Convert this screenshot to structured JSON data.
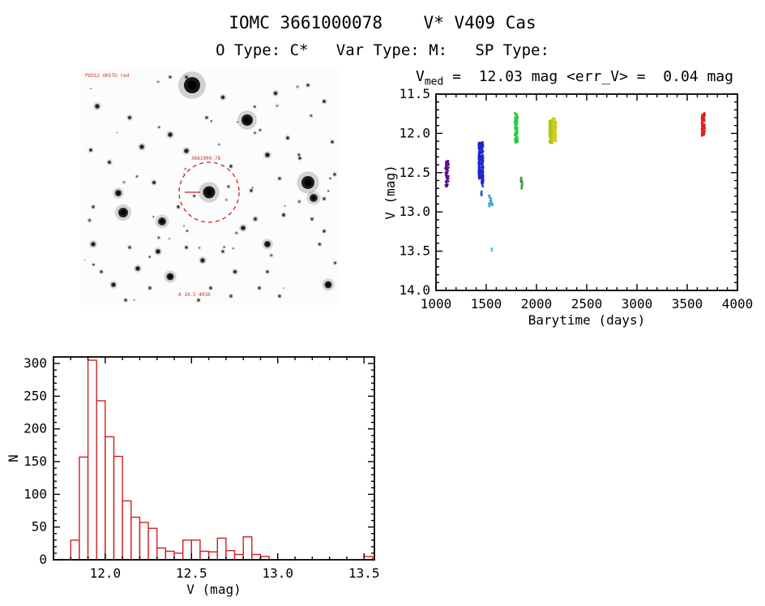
{
  "header": {
    "title": "IOMC 3661000078    V* V409 Cas",
    "subtitle": "O Type: C*   Var Type: M:   SP Type:"
  },
  "lightcurve_title": {
    "var": "V",
    "sub": "med",
    "eq": " =  12.03 mag ",
    "err": "<err_V>",
    "eq2": " =  0.04 mag"
  },
  "finding_chart": {
    "annotations": {
      "top_left": "POSS2 UKSTU red",
      "center_label": "3661000-78",
      "bottom": "A 19.5 4036"
    },
    "marker_color": "#cc2222"
  },
  "chart_data": [
    {
      "id": "lightcurve",
      "type": "scatter",
      "xlabel": "Barytime (days)",
      "ylabel": "V (mag)",
      "xlim": [
        1000,
        4000
      ],
      "ylim": [
        11.5,
        14.0
      ],
      "y_inverted": true,
      "xticks": [
        1000,
        1500,
        2000,
        2500,
        3000,
        3500,
        4000
      ],
      "yticks": [
        11.5,
        12.0,
        12.5,
        13.0,
        13.5,
        14.0
      ],
      "clusters": [
        {
          "color": "#5a0f86",
          "t": [
            1095,
            1125
          ],
          "v": [
            12.35,
            12.68
          ],
          "n": 50
        },
        {
          "color": "#1f25c8",
          "t": [
            1425,
            1442
          ],
          "v": [
            12.12,
            12.58
          ],
          "n": 110
        },
        {
          "color": "#1f25c8",
          "t": [
            1455,
            1470
          ],
          "v": [
            12.1,
            12.65
          ],
          "n": 110
        },
        {
          "color": "#2a52d8",
          "t": [
            1450,
            1468
          ],
          "v": [
            12.65,
            12.8
          ],
          "n": 7
        },
        {
          "color": "#2e9fd4",
          "t": [
            1525,
            1565
          ],
          "v": [
            12.74,
            12.93
          ],
          "n": 13
        },
        {
          "color": "#3fc3e8",
          "t": [
            1552,
            1562
          ],
          "v": [
            13.45,
            13.5
          ],
          "n": 2
        },
        {
          "color": "#27cc45",
          "t": [
            1785,
            1812
          ],
          "v": [
            11.73,
            12.12
          ],
          "n": 110
        },
        {
          "color": "#2f9e44",
          "t": [
            1843,
            1860
          ],
          "v": [
            12.56,
            12.7
          ],
          "n": 12
        },
        {
          "color": "#a8c81e",
          "t": [
            2128,
            2158
          ],
          "v": [
            11.83,
            12.13
          ],
          "n": 85
        },
        {
          "color": "#d3cb1d",
          "t": [
            2163,
            2195
          ],
          "v": [
            11.8,
            12.1
          ],
          "n": 85
        },
        {
          "color": "#dd2222",
          "t": [
            3642,
            3675
          ],
          "v": [
            11.74,
            12.03
          ],
          "n": 65
        }
      ]
    },
    {
      "id": "histogram",
      "type": "bar",
      "xlabel": "V (mag)",
      "ylabel": "N",
      "xlim": [
        11.7,
        13.56
      ],
      "ylim": [
        0,
        310
      ],
      "xticks": [
        12.0,
        12.5,
        13.0,
        13.5
      ],
      "yticks": [
        0,
        50,
        100,
        150,
        200,
        250,
        300
      ],
      "bin_start": 11.8,
      "bin_width": 0.05,
      "counts": [
        30,
        157,
        305,
        243,
        188,
        158,
        90,
        65,
        57,
        48,
        18,
        13,
        10,
        30,
        30,
        13,
        12,
        33,
        14,
        8,
        35,
        8,
        5,
        0,
        0,
        0,
        0,
        0,
        0,
        0,
        0,
        0,
        0,
        0,
        5
      ],
      "bar_color": "#cc2222"
    }
  ]
}
